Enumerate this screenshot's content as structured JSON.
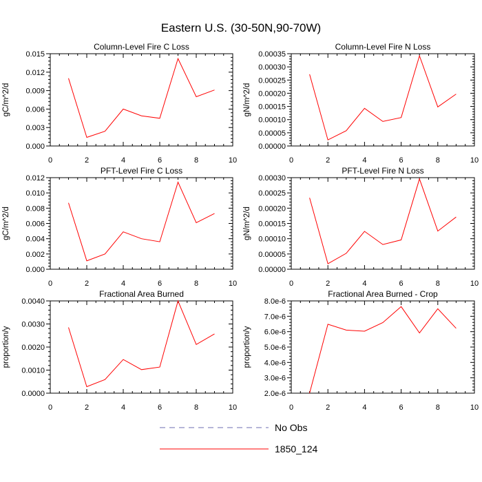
{
  "title": "Eastern U.S. (30-50N,90-70W)",
  "legend": [
    {
      "label": "No Obs",
      "color": "#6b6bb0",
      "dash": true
    },
    {
      "label": "1850_124",
      "color": "#ff0000",
      "dash": false
    }
  ],
  "chart_data": [
    {
      "type": "line",
      "title": "Column-Level Fire C Loss",
      "ylabel": "gC/m^2/d",
      "xlim": [
        0,
        10
      ],
      "xticks": [
        "0",
        "2",
        "4",
        "6",
        "8",
        "10"
      ],
      "ylim": [
        0,
        0.015
      ],
      "yticks": [
        "0.000",
        "0.003",
        "0.006",
        "0.009",
        "0.012",
        "0.015"
      ],
      "series": [
        {
          "name": "1850_124",
          "x": [
            1,
            2,
            3,
            4,
            5,
            6,
            7,
            8,
            9
          ],
          "values": [
            0.011,
            0.0014,
            0.0024,
            0.006,
            0.0049,
            0.0045,
            0.0142,
            0.008,
            0.0091
          ]
        }
      ]
    },
    {
      "type": "line",
      "title": "Column-Level Fire N Loss",
      "ylabel": "gN/m^2/d",
      "xlim": [
        0,
        10
      ],
      "xticks": [
        "0",
        "2",
        "4",
        "6",
        "8",
        "10"
      ],
      "ylim": [
        0,
        0.00035
      ],
      "yticks": [
        "0.00000",
        "0.00005",
        "0.00010",
        "0.00015",
        "0.00020",
        "0.00025",
        "0.00030",
        "0.00035"
      ],
      "series": [
        {
          "name": "1850_124",
          "x": [
            1,
            2,
            3,
            4,
            5,
            6,
            7,
            8,
            9
          ],
          "values": [
            0.000272,
            2.3e-05,
            5.8e-05,
            0.000143,
            9.3e-05,
            0.000108,
            0.000342,
            0.000148,
            0.000197
          ]
        }
      ]
    },
    {
      "type": "line",
      "title": "PFT-Level Fire C Loss",
      "ylabel": "gC/m^2/d",
      "xlim": [
        0,
        10
      ],
      "xticks": [
        "0",
        "2",
        "4",
        "6",
        "8",
        "10"
      ],
      "ylim": [
        0,
        0.012
      ],
      "yticks": [
        "0.000",
        "0.002",
        "0.004",
        "0.006",
        "0.008",
        "0.010",
        "0.012"
      ],
      "series": [
        {
          "name": "1850_124",
          "x": [
            1,
            2,
            3,
            4,
            5,
            6,
            7,
            8,
            9
          ],
          "values": [
            0.0087,
            0.0011,
            0.002,
            0.0049,
            0.004,
            0.0036,
            0.0114,
            0.0061,
            0.0073
          ]
        }
      ]
    },
    {
      "type": "line",
      "title": "PFT-Level Fire N Loss",
      "ylabel": "gN/m^2/d",
      "xlim": [
        0,
        10
      ],
      "xticks": [
        "0",
        "2",
        "4",
        "6",
        "8",
        "10"
      ],
      "ylim": [
        0,
        0.0003
      ],
      "yticks": [
        "0.00000",
        "0.00005",
        "0.00010",
        "0.00015",
        "0.00020",
        "0.00025",
        "0.00030"
      ],
      "series": [
        {
          "name": "1850_124",
          "x": [
            1,
            2,
            3,
            4,
            5,
            6,
            7,
            8,
            9
          ],
          "values": [
            0.000234,
            1.8e-05,
            5.2e-05,
            0.000124,
            8.1e-05,
            9.6e-05,
            0.000296,
            0.000125,
            0.000171
          ]
        }
      ]
    },
    {
      "type": "line",
      "title": "Fractional Area Burned",
      "ylabel": "proportion/y",
      "xlim": [
        0,
        10
      ],
      "xticks": [
        "0",
        "2",
        "4",
        "6",
        "8",
        "10"
      ],
      "ylim": [
        0,
        0.004
      ],
      "yticks": [
        "0.0000",
        "0.0010",
        "0.0020",
        "0.0030",
        "0.0040"
      ],
      "series": [
        {
          "name": "1850_124",
          "x": [
            1,
            2,
            3,
            4,
            5,
            6,
            7,
            8,
            9
          ],
          "values": [
            0.00285,
            0.00028,
            0.00059,
            0.00146,
            0.00102,
            0.00113,
            0.004,
            0.00211,
            0.00257
          ]
        }
      ]
    },
    {
      "type": "line",
      "title": "Fractional Area Burned - Crop",
      "ylabel": "proportion/y",
      "xlim": [
        0,
        10
      ],
      "xticks": [
        "0",
        "2",
        "4",
        "6",
        "8",
        "10"
      ],
      "ylim": [
        2e-06,
        8e-06
      ],
      "yticks": [
        "2.0e-6",
        "3.0e-6",
        "4.0e-6",
        "5.0e-6",
        "6.0e-6",
        "7.0e-6",
        "8.0e-6"
      ],
      "series": [
        {
          "name": "1850_124",
          "x": [
            1,
            2,
            3,
            4,
            5,
            6,
            7,
            8,
            9
          ],
          "values": [
            2e-06,
            6.48e-06,
            6.1e-06,
            6.03e-06,
            6.59e-06,
            7.63e-06,
            5.92e-06,
            7.49e-06,
            6.22e-06
          ]
        }
      ]
    }
  ]
}
